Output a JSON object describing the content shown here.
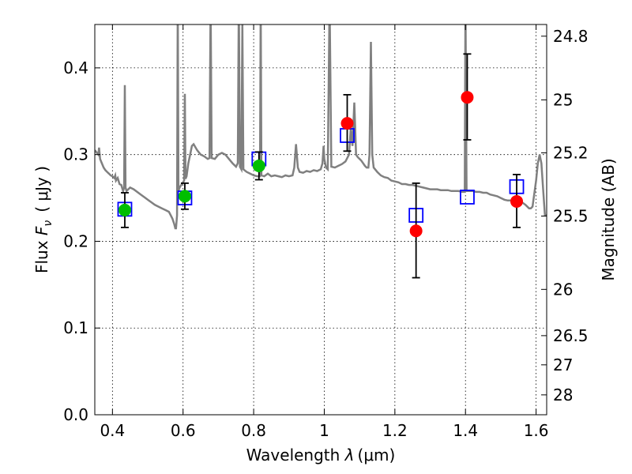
{
  "chart_data": {
    "type": "scatter",
    "xlabel": "Wavelength  λ (μm)",
    "ylabel": "Flux  F_ν  ( μJy )",
    "ylabel_parts": {
      "prefix": "Flux  ",
      "symbol": "F",
      "subscript": "ν",
      "unit": "( μJy )"
    },
    "xlabel_parts": {
      "prefix": "Wavelength  ",
      "symbol": "λ",
      "unit": "(μm)"
    },
    "y2label": "Magnitude (AB)",
    "xlim": [
      0.35,
      1.63
    ],
    "ylim": [
      0.0,
      0.45
    ],
    "grid": true,
    "x_ticks": [
      0.4,
      0.6,
      0.8,
      1.0,
      1.2,
      1.4,
      1.6
    ],
    "x_tick_labels": [
      "0.4",
      "0.6",
      "0.8",
      "1",
      "1.2",
      "1.4",
      "1.6"
    ],
    "y_ticks": [
      0.0,
      0.1,
      0.2,
      0.3,
      0.4
    ],
    "y_tick_labels": [
      "0.0",
      "0.1",
      "0.2",
      "0.3",
      "0.4"
    ],
    "mag_ticks": [
      24.8,
      25,
      25.2,
      25.5,
      26,
      26.5,
      27,
      28
    ],
    "mag_tick_labels": [
      "24.8",
      "25",
      "25.2",
      "25.5",
      "26",
      "26.5",
      "27",
      "28"
    ],
    "mag_zero_point": 23.9,
    "colors": {
      "spectrum": "#808080",
      "green": "#00bf00",
      "red": "#ff0000",
      "model_box": "#0000ff",
      "errorbar": "#000000",
      "grid": "#000000"
    },
    "series": [
      {
        "kind": "spectrum",
        "points": [
          [
            0.35,
            0.305
          ],
          [
            0.36,
            0.3
          ],
          [
            0.362,
            0.308
          ],
          [
            0.365,
            0.295
          ],
          [
            0.37,
            0.29
          ],
          [
            0.375,
            0.285
          ],
          [
            0.38,
            0.282
          ],
          [
            0.385,
            0.28
          ],
          [
            0.39,
            0.278
          ],
          [
            0.395,
            0.276
          ],
          [
            0.4,
            0.275
          ],
          [
            0.405,
            0.273
          ],
          [
            0.408,
            0.276
          ],
          [
            0.41,
            0.27
          ],
          [
            0.415,
            0.273
          ],
          [
            0.42,
            0.266
          ],
          [
            0.425,
            0.265
          ],
          [
            0.43,
            0.258
          ],
          [
            0.433,
            0.262
          ],
          [
            0.435,
            0.38
          ],
          [
            0.437,
            0.262
          ],
          [
            0.44,
            0.258
          ],
          [
            0.45,
            0.262
          ],
          [
            0.46,
            0.26
          ],
          [
            0.47,
            0.257
          ],
          [
            0.48,
            0.254
          ],
          [
            0.49,
            0.251
          ],
          [
            0.5,
            0.248
          ],
          [
            0.51,
            0.245
          ],
          [
            0.52,
            0.242
          ],
          [
            0.53,
            0.24
          ],
          [
            0.54,
            0.238
          ],
          [
            0.55,
            0.236
          ],
          [
            0.56,
            0.234
          ],
          [
            0.565,
            0.23
          ],
          [
            0.57,
            0.226
          ],
          [
            0.575,
            0.22
          ],
          [
            0.578,
            0.215
          ],
          [
            0.58,
            0.215
          ],
          [
            0.583,
            0.23
          ],
          [
            0.585,
            0.48
          ],
          [
            0.587,
            0.258
          ],
          [
            0.59,
            0.262
          ],
          [
            0.595,
            0.265
          ],
          [
            0.6,
            0.268
          ],
          [
            0.603,
            0.27
          ],
          [
            0.605,
            0.37
          ],
          [
            0.607,
            0.272
          ],
          [
            0.61,
            0.275
          ],
          [
            0.615,
            0.29
          ],
          [
            0.62,
            0.3
          ],
          [
            0.625,
            0.31
          ],
          [
            0.63,
            0.312
          ],
          [
            0.64,
            0.305
          ],
          [
            0.65,
            0.3
          ],
          [
            0.66,
            0.298
          ],
          [
            0.67,
            0.295
          ],
          [
            0.675,
            0.296
          ],
          [
            0.678,
            0.48
          ],
          [
            0.681,
            0.296
          ],
          [
            0.69,
            0.295
          ],
          [
            0.7,
            0.3
          ],
          [
            0.71,
            0.302
          ],
          [
            0.72,
            0.3
          ],
          [
            0.73,
            0.295
          ],
          [
            0.74,
            0.29
          ],
          [
            0.75,
            0.286
          ],
          [
            0.755,
            0.29
          ],
          [
            0.758,
            0.48
          ],
          [
            0.761,
            0.286
          ],
          [
            0.765,
            0.283
          ],
          [
            0.768,
            0.45
          ],
          [
            0.771,
            0.283
          ],
          [
            0.78,
            0.28
          ],
          [
            0.79,
            0.278
          ],
          [
            0.8,
            0.276
          ],
          [
            0.81,
            0.275
          ],
          [
            0.818,
            0.275
          ],
          [
            0.82,
            0.48
          ],
          [
            0.822,
            0.276
          ],
          [
            0.83,
            0.275
          ],
          [
            0.84,
            0.278
          ],
          [
            0.85,
            0.275
          ],
          [
            0.86,
            0.276
          ],
          [
            0.87,
            0.275
          ],
          [
            0.88,
            0.274
          ],
          [
            0.89,
            0.276
          ],
          [
            0.9,
            0.275
          ],
          [
            0.91,
            0.276
          ],
          [
            0.915,
            0.285
          ],
          [
            0.92,
            0.312
          ],
          [
            0.925,
            0.285
          ],
          [
            0.93,
            0.28
          ],
          [
            0.94,
            0.279
          ],
          [
            0.95,
            0.281
          ],
          [
            0.96,
            0.28
          ],
          [
            0.97,
            0.282
          ],
          [
            0.98,
            0.281
          ],
          [
            0.99,
            0.283
          ],
          [
            0.995,
            0.29
          ],
          [
            0.998,
            0.31
          ],
          [
            1.0,
            0.295
          ],
          [
            1.005,
            0.285
          ],
          [
            1.01,
            0.283
          ],
          [
            1.015,
            0.48
          ],
          [
            1.02,
            0.286
          ],
          [
            1.03,
            0.285
          ],
          [
            1.04,
            0.287
          ],
          [
            1.05,
            0.289
          ],
          [
            1.06,
            0.292
          ],
          [
            1.07,
            0.3
          ],
          [
            1.075,
            0.33
          ],
          [
            1.078,
            0.318
          ],
          [
            1.08,
            0.31
          ],
          [
            1.085,
            0.36
          ],
          [
            1.09,
            0.3
          ],
          [
            1.095,
            0.297
          ],
          [
            1.1,
            0.295
          ],
          [
            1.105,
            0.293
          ],
          [
            1.11,
            0.29
          ],
          [
            1.115,
            0.287
          ],
          [
            1.12,
            0.285
          ],
          [
            1.125,
            0.285
          ],
          [
            1.128,
            0.3
          ],
          [
            1.132,
            0.43
          ],
          [
            1.136,
            0.3
          ],
          [
            1.14,
            0.285
          ],
          [
            1.15,
            0.28
          ],
          [
            1.16,
            0.276
          ],
          [
            1.17,
            0.274
          ],
          [
            1.18,
            0.273
          ],
          [
            1.19,
            0.27
          ],
          [
            1.2,
            0.269
          ],
          [
            1.21,
            0.268
          ],
          [
            1.22,
            0.266
          ],
          [
            1.23,
            0.266
          ],
          [
            1.24,
            0.265
          ],
          [
            1.25,
            0.265
          ],
          [
            1.26,
            0.264
          ],
          [
            1.27,
            0.263
          ],
          [
            1.28,
            0.262
          ],
          [
            1.29,
            0.261
          ],
          [
            1.3,
            0.26
          ],
          [
            1.31,
            0.26
          ],
          [
            1.32,
            0.26
          ],
          [
            1.33,
            0.259
          ],
          [
            1.34,
            0.259
          ],
          [
            1.35,
            0.259
          ],
          [
            1.36,
            0.258
          ],
          [
            1.37,
            0.258
          ],
          [
            1.38,
            0.258
          ],
          [
            1.39,
            0.257
          ],
          [
            1.398,
            0.257
          ],
          [
            1.4,
            0.48
          ],
          [
            1.403,
            0.258
          ],
          [
            1.41,
            0.258
          ],
          [
            1.42,
            0.258
          ],
          [
            1.43,
            0.257
          ],
          [
            1.44,
            0.257
          ],
          [
            1.45,
            0.256
          ],
          [
            1.46,
            0.256
          ],
          [
            1.47,
            0.254
          ],
          [
            1.48,
            0.253
          ],
          [
            1.49,
            0.252
          ],
          [
            1.5,
            0.25
          ],
          [
            1.51,
            0.248
          ],
          [
            1.52,
            0.247
          ],
          [
            1.53,
            0.247
          ],
          [
            1.54,
            0.246
          ],
          [
            1.55,
            0.246
          ],
          [
            1.56,
            0.245
          ],
          [
            1.57,
            0.242
          ],
          [
            1.58,
            0.238
          ],
          [
            1.585,
            0.238
          ],
          [
            1.59,
            0.24
          ],
          [
            1.6,
            0.27
          ],
          [
            1.605,
            0.29
          ],
          [
            1.61,
            0.3
          ],
          [
            1.615,
            0.29
          ],
          [
            1.62,
            0.26
          ],
          [
            1.625,
            0.23
          ],
          [
            1.63,
            0.23
          ]
        ]
      },
      {
        "kind": "model_boxes",
        "points": [
          [
            0.435,
            0.237
          ],
          [
            0.605,
            0.25
          ],
          [
            0.815,
            0.295
          ],
          [
            1.065,
            0.322
          ],
          [
            1.26,
            0.23
          ],
          [
            1.405,
            0.251
          ],
          [
            1.545,
            0.263
          ]
        ]
      },
      {
        "kind": "green_points",
        "points": [
          {
            "x": 0.435,
            "y": 0.236,
            "lo": 0.216,
            "hi": 0.256
          },
          {
            "x": 0.605,
            "y": 0.252,
            "lo": 0.237,
            "hi": 0.267
          },
          {
            "x": 0.815,
            "y": 0.287,
            "lo": 0.271,
            "hi": 0.303
          }
        ]
      },
      {
        "kind": "red_points",
        "points": [
          {
            "x": 1.065,
            "y": 0.336,
            "lo": 0.304,
            "hi": 0.369
          },
          {
            "x": 1.26,
            "y": 0.212,
            "lo": 0.158,
            "hi": 0.267
          },
          {
            "x": 1.405,
            "y": 0.366,
            "lo": 0.317,
            "hi": 0.416
          },
          {
            "x": 1.545,
            "y": 0.246,
            "lo": 0.216,
            "hi": 0.277
          }
        ]
      }
    ]
  }
}
